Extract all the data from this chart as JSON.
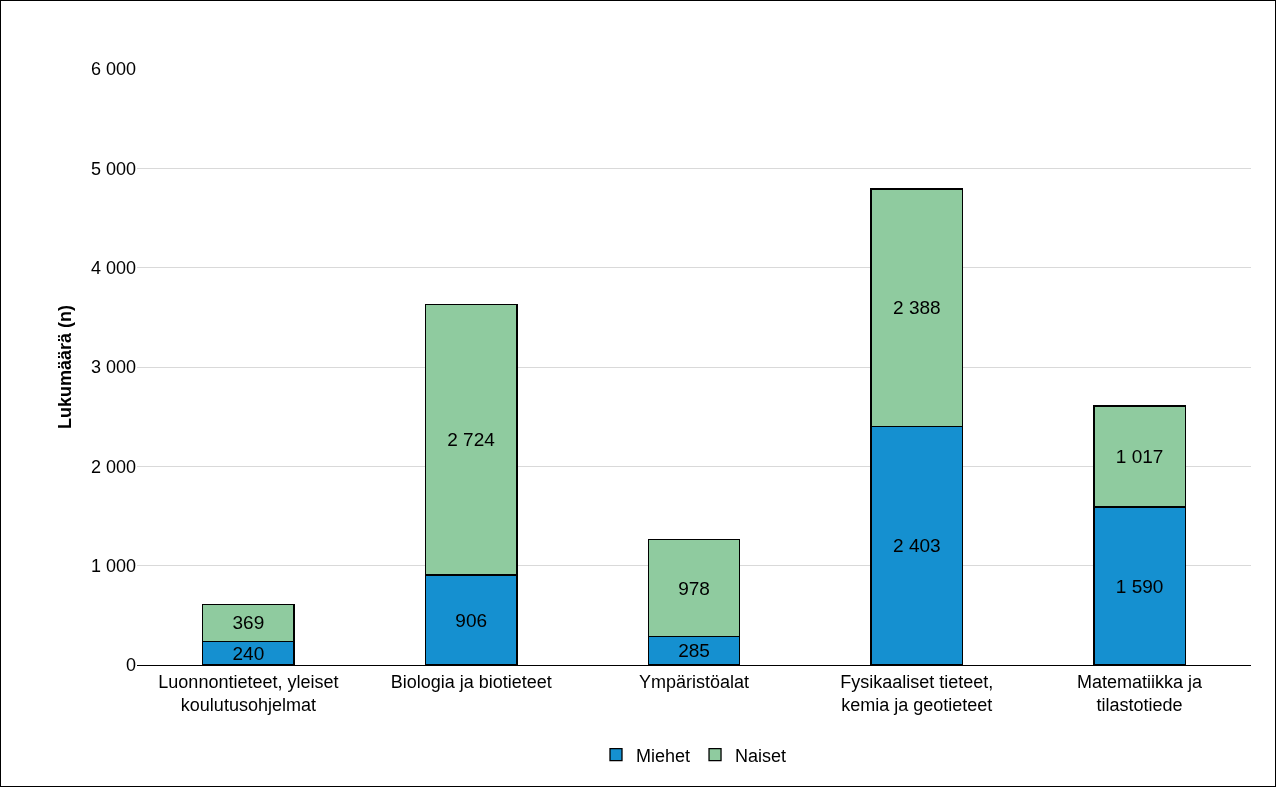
{
  "chart_data": {
    "type": "bar",
    "stacked": true,
    "ylabel": "Lukumäärä (n)",
    "categories": [
      "Luonnontieteet, yleiset\nkoulutusohjelmat",
      "Biologia ja biotieteet",
      "Ympäristöalat",
      "Fysikaaliset tieteet,\nkemia ja geotieteet",
      "Matematiikka ja\ntilastotiede"
    ],
    "series": [
      {
        "name": "Miehet",
        "color": "#1590d0",
        "values": [
          240,
          906,
          285,
          2403,
          1590
        ],
        "value_labels": [
          "240",
          "906",
          "285",
          "2 403",
          "1 590"
        ]
      },
      {
        "name": "Naiset",
        "color": "#8fcb9f",
        "values": [
          369,
          2724,
          978,
          2388,
          1017
        ],
        "value_labels": [
          "369",
          "2 724",
          "978",
          "2 388",
          "1 017"
        ]
      }
    ],
    "ylim": [
      0,
      6000
    ],
    "yticks": [
      0,
      {
        "value": 1000,
        "label": "1 000"
      },
      {
        "value": 2000,
        "label": "2 000"
      },
      {
        "value": 3000,
        "label": "3 000"
      },
      {
        "value": 4000,
        "label": "4 000"
      },
      {
        "value": 5000,
        "label": "5 000"
      },
      {
        "value": 6000,
        "label": "6 000"
      }
    ],
    "grid": "y",
    "legend": "bottom"
  }
}
